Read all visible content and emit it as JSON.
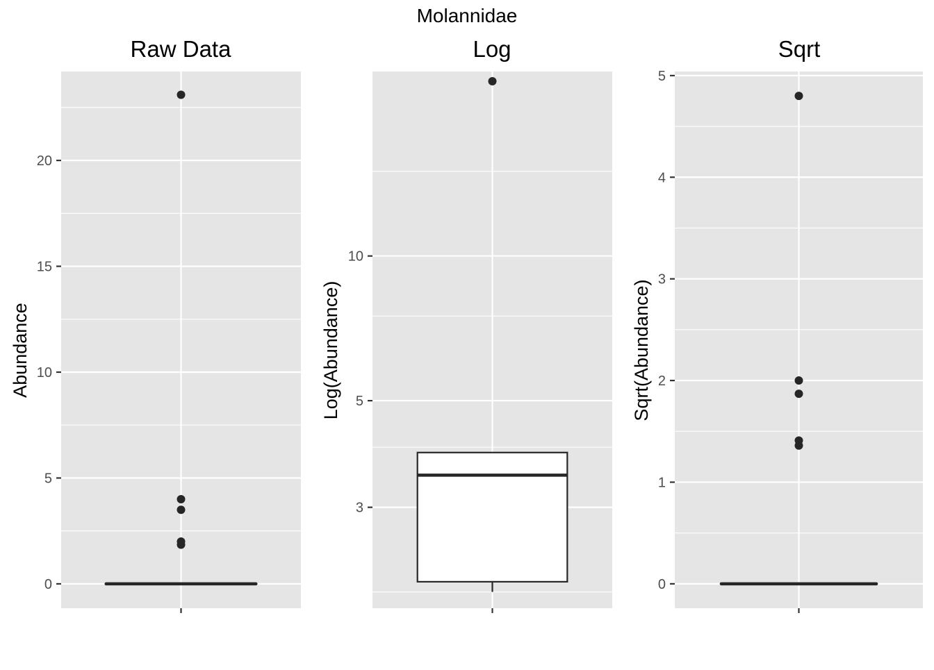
{
  "figure": {
    "title": "Molannidae"
  },
  "colors": {
    "panel_background": "#e5e5e5",
    "grid": "#ffffff",
    "ink": "#262626",
    "tick_text": "#4d4d4d",
    "box_fill": "#ffffff"
  },
  "chart_data": [
    {
      "type": "box",
      "title": "Raw Data",
      "xlabel": "",
      "ylabel": "Abundance",
      "scale": "linear",
      "ylim": [
        -1.15,
        24.2
      ],
      "yticks": [
        0,
        5,
        10,
        15,
        20
      ],
      "ytick_labels": [
        "0",
        "5",
        "10",
        "15",
        "20"
      ],
      "y_minor": [
        2.5,
        7.5,
        12.5,
        17.5,
        22.5
      ],
      "grid": true,
      "box": {
        "lower": 0,
        "q1": 0,
        "median": 0,
        "q3": 0,
        "upper": 0
      },
      "outliers": [
        1.85,
        2.0,
        3.5,
        4.0,
        23.1
      ]
    },
    {
      "type": "box",
      "title": "Log",
      "xlabel": "",
      "ylabel": "Log(Abundance)",
      "scale": "log",
      "ylim": [
        1.85,
        24.2
      ],
      "yticks": [
        3,
        5,
        10
      ],
      "ytick_labels": [
        "3",
        "5",
        "10"
      ],
      "y_minor": [
        2,
        4,
        7.5,
        15
      ],
      "grid": true,
      "box": {
        "lower": 2.0,
        "q1": 2.1,
        "median": 3.5,
        "q3": 3.9,
        "upper": 3.9
      },
      "outliers": [
        23.1
      ]
    },
    {
      "type": "box",
      "title": "Sqrt",
      "xlabel": "",
      "ylabel": "Sqrt(Abundance)",
      "scale": "linear",
      "ylim": [
        -0.24,
        5.04
      ],
      "yticks": [
        0,
        1,
        2,
        3,
        4,
        5
      ],
      "ytick_labels": [
        "0",
        "1",
        "2",
        "3",
        "4",
        "5"
      ],
      "y_minor": [
        0.5,
        1.5,
        2.5,
        3.5,
        4.5
      ],
      "grid": true,
      "box": {
        "lower": 0,
        "q1": 0,
        "median": 0,
        "q3": 0,
        "upper": 0
      },
      "outliers": [
        1.36,
        1.41,
        1.87,
        2.0,
        4.8
      ]
    }
  ]
}
